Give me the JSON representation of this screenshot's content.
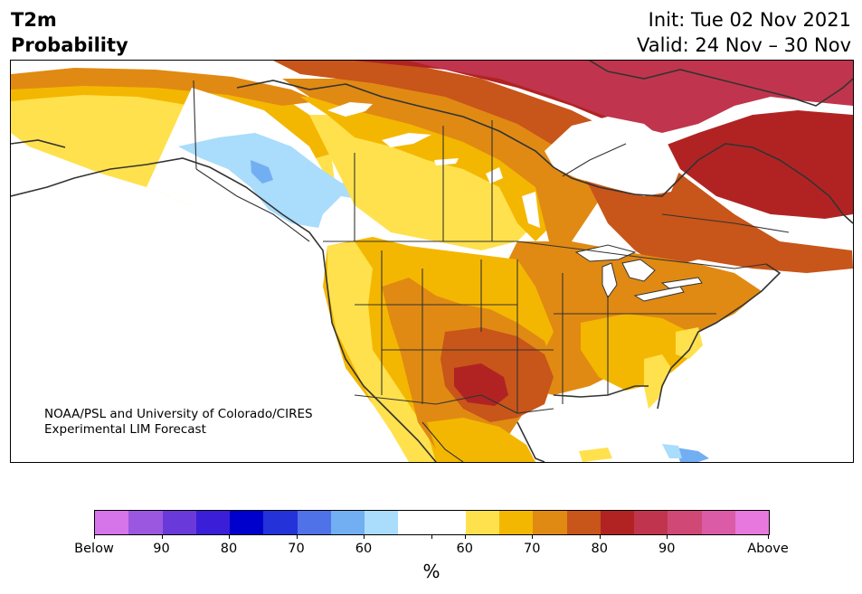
{
  "header": {
    "title_line1": "T2m",
    "title_line2": "Probability",
    "init_text": "Init: Tue 02 Nov 2021",
    "valid_text": "Valid: 24 Nov – 30 Nov"
  },
  "credit": {
    "line1": "NOAA/PSL and University of Colorado/CIRES",
    "line2": "Experimental LIM Forecast"
  },
  "colorbar": {
    "colors": [
      "#d674ea",
      "#9b57e0",
      "#6a39d9",
      "#3b1ed7",
      "#0000cc",
      "#2333d9",
      "#4f72e8",
      "#72aef2",
      "#aadcfb",
      "#ffffff",
      "#ffffff",
      "#ffe14d",
      "#f4b701",
      "#e08a13",
      "#c85519",
      "#b12323",
      "#c0354d",
      "#cf4876",
      "#dc5ba7",
      "#e778dd"
    ],
    "labels": [
      "Below",
      "90",
      "80",
      "70",
      "60",
      "60",
      "70",
      "80",
      "90",
      "Above"
    ],
    "unit": "%"
  },
  "palette": {
    "below_light_blue": "#aadcfb",
    "below_blue": "#72aef2",
    "above_yellow": "#ffe14d",
    "above_gold": "#f4b701",
    "above_orange": "#e08a13",
    "above_dark_orange": "#c85519",
    "above_red": "#b12323",
    "above_crimson": "#c0354d",
    "border_color": "#333333"
  }
}
